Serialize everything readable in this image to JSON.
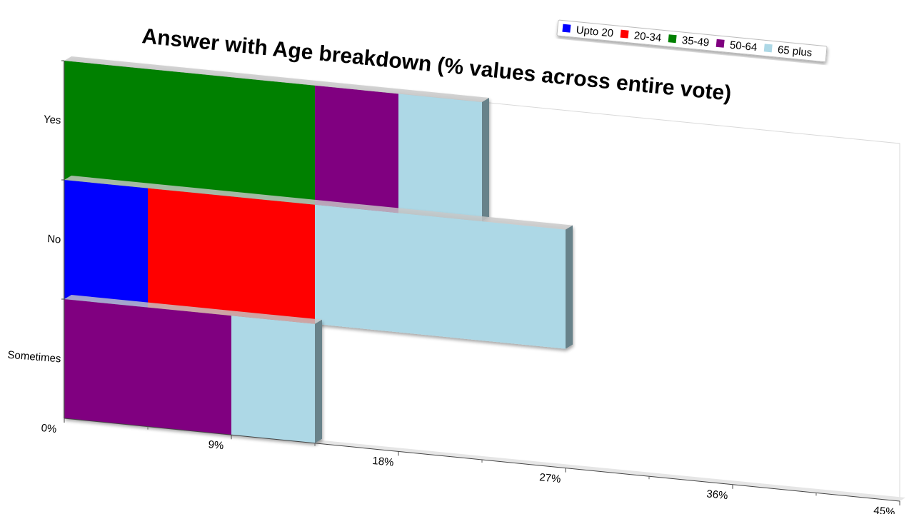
{
  "chart_data": {
    "type": "bar",
    "orientation": "horizontal",
    "stacked": true,
    "title": "Answer with Age breakdown (% values across entire vote)",
    "categories": [
      "Yes",
      "No",
      "Sometimes"
    ],
    "series": [
      {
        "name": "Upto 20",
        "color": "#0000ff",
        "values": [
          0,
          4.5,
          0
        ]
      },
      {
        "name": "20-34",
        "color": "#ff0000",
        "values": [
          0,
          9,
          0
        ]
      },
      {
        "name": "35-49",
        "color": "#008000",
        "values": [
          13.5,
          0,
          0
        ]
      },
      {
        "name": "50-64",
        "color": "#800080",
        "values": [
          4.5,
          0,
          9
        ]
      },
      {
        "name": "65 plus",
        "color": "#add8e6",
        "values": [
          4.5,
          13.5,
          4.5
        ]
      }
    ],
    "x_ticks": [
      "0%",
      "9%",
      "18%",
      "27%",
      "36%",
      "45%"
    ],
    "xlim": [
      0,
      45
    ],
    "xlabel": "",
    "ylabel": "",
    "legend_position": "top-right",
    "grid": false
  }
}
